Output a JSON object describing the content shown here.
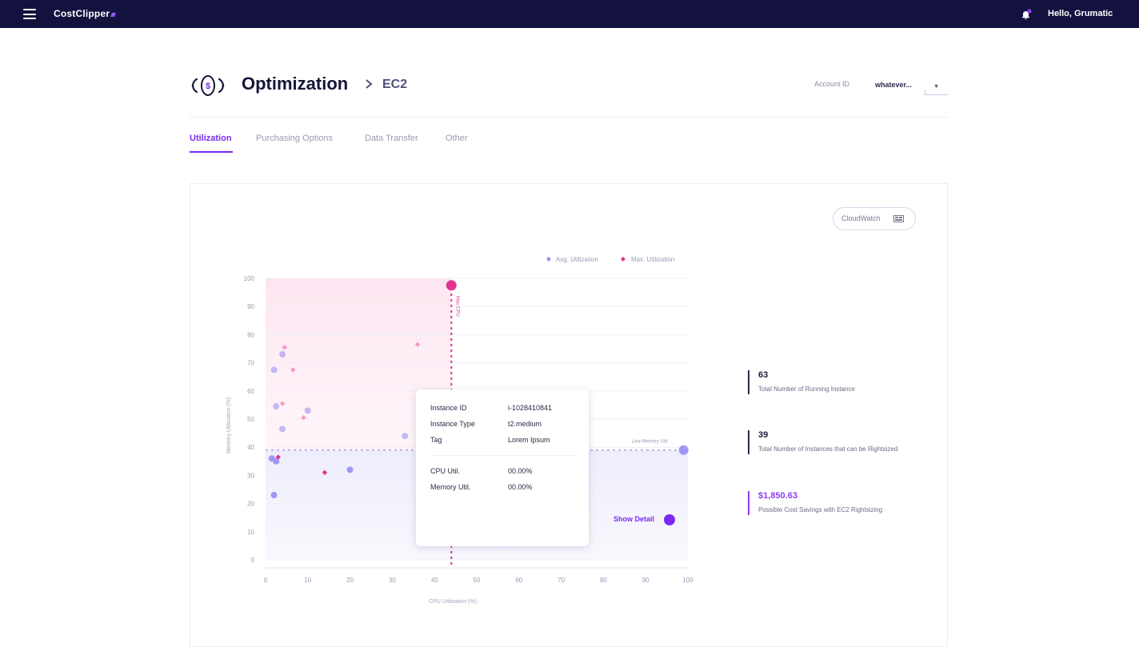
{
  "app": {
    "brand": "CostClipper",
    "greeting": "Hello, Grumatic"
  },
  "header": {
    "title": "Optimization",
    "breadcrumb": "EC2",
    "account_label": "Account ID",
    "account_value": "whatever..."
  },
  "tabs": [
    {
      "label": "Utilization",
      "active": true
    },
    {
      "label": "Purchasing Options",
      "active": false
    },
    {
      "label": "Data Transfer",
      "active": false
    },
    {
      "label": "Other",
      "active": false
    }
  ],
  "cloudwatch_button": {
    "label": "CloudWatch",
    "icon": "monitor-icon"
  },
  "chart_data": {
    "type": "scatter",
    "xlabel": "CPU Utilization (%)",
    "ylabel": "Memory Utilization (%)",
    "xlim": [
      0,
      100
    ],
    "ylim": [
      0,
      100
    ],
    "xticks": [
      0,
      10,
      20,
      30,
      40,
      50,
      60,
      70,
      80,
      90,
      100
    ],
    "yticks": [
      0,
      10,
      20,
      30,
      40,
      50,
      60,
      70,
      80,
      90,
      100
    ],
    "grid": "horizontal",
    "legend_position": "top-right",
    "series": [
      {
        "name": "Avg. Utilization",
        "color": "#9a92f2",
        "marker": "circle",
        "points": [
          [
            2,
            67.5
          ],
          [
            4,
            73
          ],
          [
            2.5,
            54.5
          ],
          [
            4,
            46.5
          ],
          [
            10,
            53
          ],
          [
            33,
            44
          ],
          [
            1.5,
            36
          ],
          [
            2.5,
            35
          ],
          [
            2,
            23
          ],
          [
            20,
            32
          ],
          [
            99,
            39
          ]
        ]
      },
      {
        "name": "Max. Utilization",
        "color": "#e0358f",
        "marker": "diamond",
        "points": [
          [
            4.5,
            75.5
          ],
          [
            6.5,
            67.5
          ],
          [
            4,
            55.5
          ],
          [
            9,
            50.5
          ],
          [
            3,
            36.5
          ],
          [
            14,
            31
          ],
          [
            36,
            76.5
          ],
          [
            44,
            97.5
          ]
        ]
      }
    ],
    "reference_lines": [
      {
        "axis": "x",
        "value": 44,
        "label": "Max CPU",
        "color": "#e0358f"
      },
      {
        "axis": "y",
        "value": 39,
        "label": "Low Memory Util.",
        "color": "#b7b2f0"
      }
    ]
  },
  "tooltip": {
    "instance_id_label": "Instance ID",
    "instance_id": "i-1028410841",
    "instance_type_label": "Instance Type",
    "instance_type": "t2.medium",
    "tag_label": "Tag",
    "tag": "Lorem Ipsum",
    "cpu_label": "CPU Util.",
    "cpu_value": "00.00%",
    "memory_label": "Memory Util.",
    "memory_value": "00.00%"
  },
  "show_detail": "Show Detail",
  "stats": [
    {
      "value": "63",
      "label": "Total Number of Running Instance"
    },
    {
      "value": "39",
      "label": "Total Number of Instances that can be Rightsized"
    },
    {
      "value": "$1,850.63",
      "label": "Possible Cost Savings with EC2 Rightsizing"
    }
  ],
  "colors": {
    "topbar": "#13123f",
    "accent": "#7b2bf0",
    "max_series": "#e0358f",
    "avg_series": "#9a92f2"
  }
}
